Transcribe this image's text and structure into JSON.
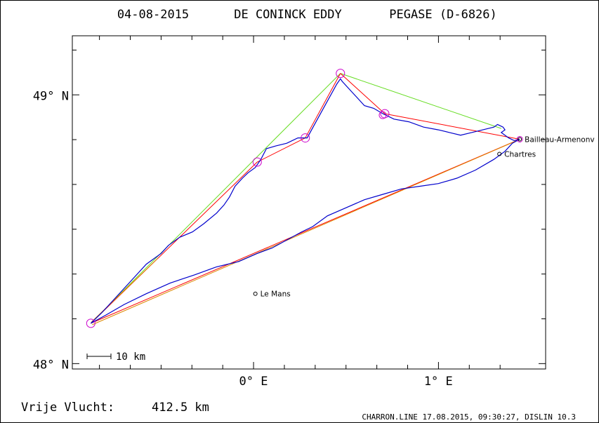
{
  "title": {
    "date": "04-08-2015",
    "pilot": "DE CONINCK EDDY",
    "glider": "PEGASE (D-6826)"
  },
  "axes": {
    "lat_labels": [
      {
        "lat": 49.0,
        "text": "49° N"
      },
      {
        "lat": 48.0,
        "text": "48° N"
      }
    ],
    "lon_labels": [
      {
        "lon": 0.0,
        "text": "0° E"
      },
      {
        "lon": 1.0,
        "text": "1° E"
      }
    ],
    "lon_range": [
      -0.98,
      1.58
    ],
    "lat_range": [
      47.98,
      49.22
    ]
  },
  "places": [
    {
      "name": "Bailleau-Armenonv",
      "lon": 1.44,
      "lat": 48.835
    },
    {
      "name": "Chartres",
      "lon": 1.33,
      "lat": 48.78
    },
    {
      "name": "Le Mans",
      "lon": 0.01,
      "lat": 48.26
    }
  ],
  "turnpoints": [
    {
      "lon": -0.88,
      "lat": 48.15
    },
    {
      "lon": 0.02,
      "lat": 48.75
    },
    {
      "lon": 0.28,
      "lat": 48.84
    },
    {
      "lon": 0.47,
      "lat": 49.08
    },
    {
      "lon": 0.71,
      "lat": 48.93
    },
    {
      "lon": 1.44,
      "lat": 48.835
    }
  ],
  "scale_bar": {
    "label": "10 km"
  },
  "free_flight": {
    "label": "Vrije Vlucht:",
    "value": "412.5 km"
  },
  "footer": "CHARRON.LINE 17.08.2015, 09:30:27, DISLIN 10.3",
  "colors": {
    "track": "#0000cc",
    "route_red": "#ff0000",
    "route_green": "#66dd22",
    "route_orange": "#dd8800",
    "turnpoint": "#cc00cc",
    "axis": "#000000"
  }
}
